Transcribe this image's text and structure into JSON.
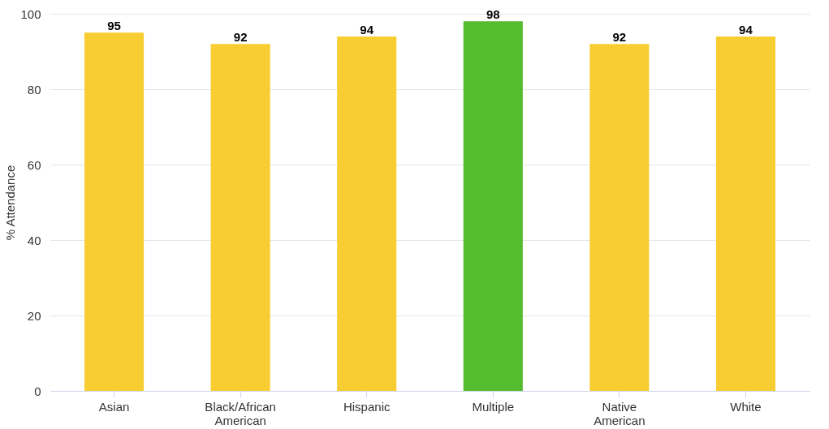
{
  "chart_data": {
    "type": "bar",
    "ylabel": "% Attendance",
    "categories": [
      "Asian",
      "Black/African American",
      "Hispanic",
      "Multiple",
      "Native American",
      "White"
    ],
    "values": [
      95,
      92,
      94,
      98,
      92,
      94
    ],
    "colors": [
      "#f8cd32",
      "#f8cd32",
      "#f8cd32",
      "#55bb2f",
      "#f8cd32",
      "#f8cd32"
    ],
    "ylim": [
      0,
      100
    ],
    "yticks": [
      0,
      20,
      40,
      60,
      80,
      100
    ],
    "grid": "y",
    "data_labels": true
  }
}
